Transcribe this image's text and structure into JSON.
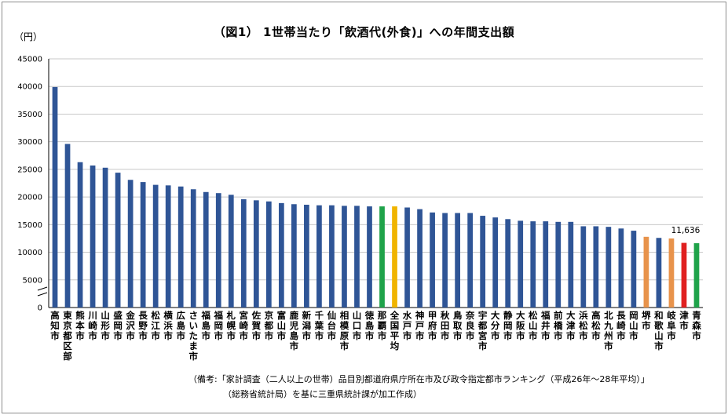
{
  "chart_data": {
    "type": "bar",
    "title": "（図1） 1世帯当たり「飲酒代(外食)」への年間支出額",
    "ylabel": "（円）",
    "xlabel": "",
    "ylim": [
      0,
      45000
    ],
    "yticks": [
      0,
      5000,
      10000,
      15000,
      20000,
      25000,
      30000,
      35000,
      40000,
      45000
    ],
    "grid": true,
    "axis_break": true,
    "categories": [
      "高知市",
      "東京都区部",
      "熊本市",
      "川崎市",
      "山形市",
      "盛岡市",
      "金沢市",
      "長野市",
      "松江市",
      "横浜市",
      "広島市",
      "さいたま市",
      "福島市",
      "福岡市",
      "札幌市",
      "宮崎市",
      "佐賀市",
      "京都市",
      "富山市",
      "鹿児島市",
      "新潟市",
      "千葉市",
      "仙台市",
      "相模原市",
      "山口市",
      "徳島市",
      "那覇市",
      "全国平均",
      "水戸市",
      "神戸市",
      "甲府市",
      "秋田市",
      "鳥取市",
      "奈良市",
      "宇都宮市",
      "大分市",
      "静岡市",
      "大阪市",
      "松山市",
      "福井市",
      "前橋市",
      "大津市",
      "浜松市",
      "高松市",
      "北九州市",
      "長崎市",
      "岡山市",
      "堺市",
      "和歌山市",
      "岐阜市",
      "津市",
      "青森市"
    ],
    "values": [
      39900,
      29600,
      26300,
      25700,
      25300,
      24400,
      23100,
      22700,
      22200,
      22100,
      21900,
      21400,
      20900,
      20700,
      20400,
      19600,
      19400,
      19200,
      18900,
      18700,
      18600,
      18500,
      18500,
      18400,
      18400,
      18300,
      18300,
      18300,
      18100,
      17800,
      17200,
      17100,
      17100,
      17100,
      16600,
      16300,
      16000,
      15700,
      15600,
      15600,
      15500,
      15500,
      14700,
      14700,
      14600,
      14300,
      13900,
      12800,
      12600,
      12500,
      11700,
      11636
    ],
    "colors": [
      "#2f5596",
      "#2f5596",
      "#2f5596",
      "#2f5596",
      "#2f5596",
      "#2f5596",
      "#2f5596",
      "#2f5596",
      "#2f5596",
      "#2f5596",
      "#2f5596",
      "#2f5596",
      "#2f5596",
      "#2f5596",
      "#2f5596",
      "#2f5596",
      "#2f5596",
      "#2f5596",
      "#2f5596",
      "#2f5596",
      "#2f5596",
      "#2f5596",
      "#2f5596",
      "#2f5596",
      "#2f5596",
      "#2f5596",
      "#1fa34a",
      "#f0b400",
      "#2f5596",
      "#2f5596",
      "#2f5596",
      "#2f5596",
      "#2f5596",
      "#2f5596",
      "#2f5596",
      "#2f5596",
      "#2f5596",
      "#2f5596",
      "#2f5596",
      "#2f5596",
      "#2f5596",
      "#2f5596",
      "#2f5596",
      "#2f5596",
      "#2f5596",
      "#2f5596",
      "#2f5596",
      "#e8934b",
      "#2f5596",
      "#e8934b",
      "#e02020",
      "#1fa34a"
    ],
    "data_label": {
      "index": 51,
      "text": "11,636"
    }
  },
  "notes": {
    "line1": "（備考:「家計調査（二人以上の世帯）品目別都道府県庁所在市及び政令指定都市ランキング（平成26年～28年平均）」",
    "line2": "（総務省統計局）を基に三重県統計課が加工作成）"
  }
}
